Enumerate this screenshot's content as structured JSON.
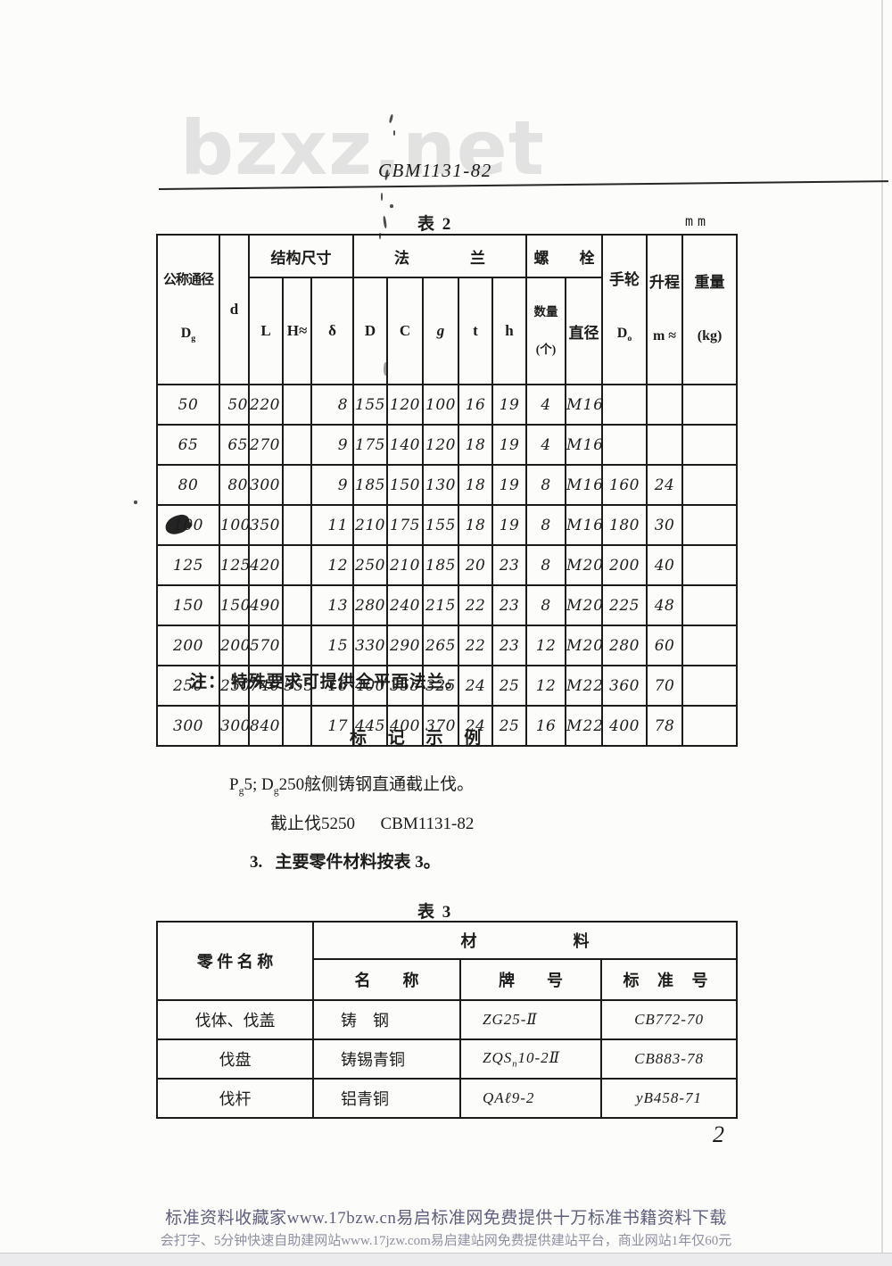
{
  "page": {
    "watermark": "bzxz.net",
    "doc_code": "CBM1131-82",
    "page_number": "2"
  },
  "table2": {
    "caption": "表 2",
    "unit": "mm",
    "header": {
      "nominal_top": "公称通径",
      "nominal_sub": "D_{g}",
      "d": "d",
      "structure_group": "结构尺寸",
      "L": "L",
      "H": "H≈",
      "delta": "δ",
      "flange_group": "法　　　　兰",
      "D": "D",
      "C": "C",
      "g": "g",
      "t": "t",
      "h": "h",
      "bolt_group": "螺　　栓",
      "qty_line1": "数量",
      "qty_line2": "(个)",
      "diameter": "直径",
      "handwheel_top": "手轮",
      "handwheel_sub": "D_{o}",
      "lift_top": "升程",
      "lift_sub": "m ≈",
      "weight_top": "重量",
      "weight_sub": "(kg)"
    },
    "rows": [
      [
        "50",
        "50",
        "220",
        "",
        "8",
        "155",
        "120",
        "100",
        "16",
        "19",
        "4",
        "M16",
        "",
        "",
        ""
      ],
      [
        "65",
        "65",
        "270",
        "",
        "9",
        "175",
        "140",
        "120",
        "18",
        "19",
        "4",
        "M16",
        "",
        "",
        ""
      ],
      [
        "80",
        "80",
        "300",
        "",
        "9",
        "185",
        "150",
        "130",
        "18",
        "19",
        "8",
        "M16",
        "160",
        "24",
        ""
      ],
      [
        "100",
        "100",
        "350",
        "",
        "11",
        "210",
        "175",
        "155",
        "18",
        "19",
        "8",
        "M16",
        "180",
        "30",
        ""
      ],
      [
        "125",
        "125",
        "420",
        "",
        "12",
        "250",
        "210",
        "185",
        "20",
        "23",
        "8",
        "M20",
        "200",
        "40",
        ""
      ],
      [
        "150",
        "150",
        "490",
        "",
        "13",
        "280",
        "240",
        "215",
        "22",
        "23",
        "8",
        "M20",
        "225",
        "48",
        ""
      ],
      [
        "200",
        "200",
        "570",
        "",
        "15",
        "330",
        "290",
        "265",
        "22",
        "23",
        "12",
        "M20",
        "280",
        "60",
        ""
      ],
      [
        "250",
        "250",
        "740",
        "553",
        "16",
        "400",
        "355",
        "325",
        "24",
        "25",
        "12",
        "M22",
        "360",
        "70",
        ""
      ],
      [
        "300",
        "300",
        "840",
        "",
        "17",
        "445",
        "400",
        "370",
        "24",
        "25",
        "16",
        "M22",
        "400",
        "78",
        ""
      ]
    ]
  },
  "note": "注：  特殊要求可提供全平面法兰。",
  "example": {
    "heading": "标　 记　 示　 例",
    "line1": "P_{g}5; D_{g}250舷侧铸钢直通截止伐。",
    "line2": "截止伐5250　  CBM1131-82"
  },
  "section3": "3.   主要零件材料按表 3。",
  "table3": {
    "caption": "表 3",
    "header": {
      "part": "零 件 名 称",
      "material_group": "材　　　　　　料",
      "name": "名　　称",
      "grade": "牌　　号",
      "standard": "标 准 号"
    },
    "rows": [
      [
        "伐体、伐盖",
        "铸　钢",
        "ZG25-Ⅱ",
        "CB772-70"
      ],
      [
        "伐盘",
        "铸锡青铜",
        "ZQS_{n}10-2Ⅱ",
        "CB883-78"
      ],
      [
        "伐杆",
        "铝青铜",
        "QAℓ9-2",
        "yB458-71"
      ]
    ]
  },
  "footer": {
    "line1": "标准资料收藏家www.17bzw.cn易启标准网免费提供十万标准书籍资料下载",
    "line2": "会打字、5分钟快速自助建网站www.17jzw.com易启建站网免费提供建站平台，商业网站1年仅60元"
  },
  "colors": {
    "ink": "#1b1b1b",
    "watermark_gray": "#e2e2e2",
    "footer_primary": "#5f5f7b",
    "footer_secondary": "#8f8fa2"
  }
}
